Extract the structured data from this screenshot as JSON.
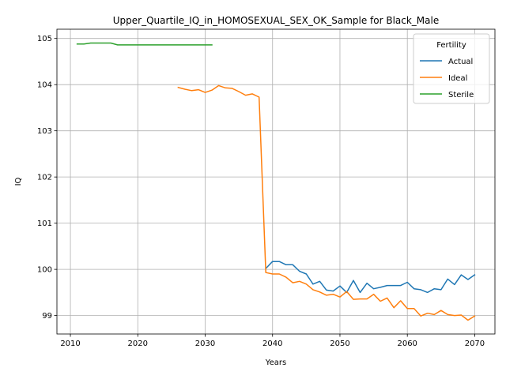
{
  "chart_data": {
    "type": "line",
    "title": "Upper_Quartile_IQ_in_HOMOSEXUAL_SEX_OK_Sample for Black_Male",
    "xlabel": "Years",
    "ylabel": "IQ",
    "xlim": [
      2008.0,
      2073.0
    ],
    "ylim": [
      98.6,
      105.2
    ],
    "xticks": [
      2010,
      2020,
      2030,
      2040,
      2050,
      2060,
      2070
    ],
    "yticks": [
      99,
      100,
      101,
      102,
      103,
      104,
      105
    ],
    "grid": true,
    "legend": {
      "title": "Fertility",
      "placement": "top-right"
    },
    "series": [
      {
        "name": "Actual",
        "color": "#1f77b4",
        "x": [
          2039,
          2040,
          2041,
          2042,
          2043,
          2044,
          2045,
          2046,
          2047,
          2048,
          2049,
          2050,
          2051,
          2052,
          2053,
          2054,
          2055,
          2056,
          2057,
          2058,
          2059,
          2060,
          2061,
          2062,
          2063,
          2064,
          2065,
          2066,
          2067,
          2068,
          2069,
          2070
        ],
        "y": [
          100.02,
          100.17,
          100.17,
          100.1,
          100.1,
          99.96,
          99.9,
          99.68,
          99.74,
          99.55,
          99.53,
          99.64,
          99.5,
          99.76,
          99.5,
          99.7,
          99.58,
          99.61,
          99.65,
          99.65,
          99.65,
          99.72,
          99.58,
          99.56,
          99.5,
          99.58,
          99.56,
          99.79,
          99.67,
          99.88,
          99.78,
          99.88
        ]
      },
      {
        "name": "Ideal",
        "color": "#ff7f0e",
        "x": [
          2026,
          2027,
          2028,
          2029,
          2030,
          2031,
          2032,
          2033,
          2034,
          2035,
          2036,
          2037,
          2038,
          2039,
          2040,
          2041,
          2042,
          2043,
          2044,
          2045,
          2046,
          2047,
          2048,
          2049,
          2050,
          2051,
          2052,
          2053,
          2054,
          2055,
          2056,
          2057,
          2058,
          2059,
          2060,
          2061,
          2062,
          2063,
          2064,
          2065,
          2066,
          2067,
          2068,
          2069,
          2070
        ],
        "y": [
          103.94,
          103.9,
          103.87,
          103.89,
          103.83,
          103.88,
          103.98,
          103.93,
          103.92,
          103.85,
          103.77,
          103.8,
          103.73,
          99.93,
          99.9,
          99.9,
          99.83,
          99.71,
          99.74,
          99.68,
          99.56,
          99.51,
          99.44,
          99.46,
          99.4,
          99.52,
          99.35,
          99.36,
          99.36,
          99.46,
          99.31,
          99.38,
          99.17,
          99.32,
          99.15,
          99.15,
          98.99,
          99.05,
          99.02,
          99.11,
          99.02,
          99.0,
          99.01,
          98.9,
          98.99
        ]
      },
      {
        "name": "Sterile",
        "color": "#2ca02c",
        "x": [
          2011,
          2012,
          2013,
          2014,
          2015,
          2016,
          2017,
          2018,
          2019,
          2020,
          2021,
          2022,
          2023,
          2024,
          2025,
          2026,
          2027,
          2028,
          2029,
          2030,
          2031
        ],
        "y": [
          104.88,
          104.88,
          104.9,
          104.9,
          104.9,
          104.9,
          104.86,
          104.86,
          104.86,
          104.86,
          104.86,
          104.86,
          104.86,
          104.86,
          104.86,
          104.86,
          104.86,
          104.86,
          104.86,
          104.86,
          104.86
        ]
      }
    ]
  }
}
